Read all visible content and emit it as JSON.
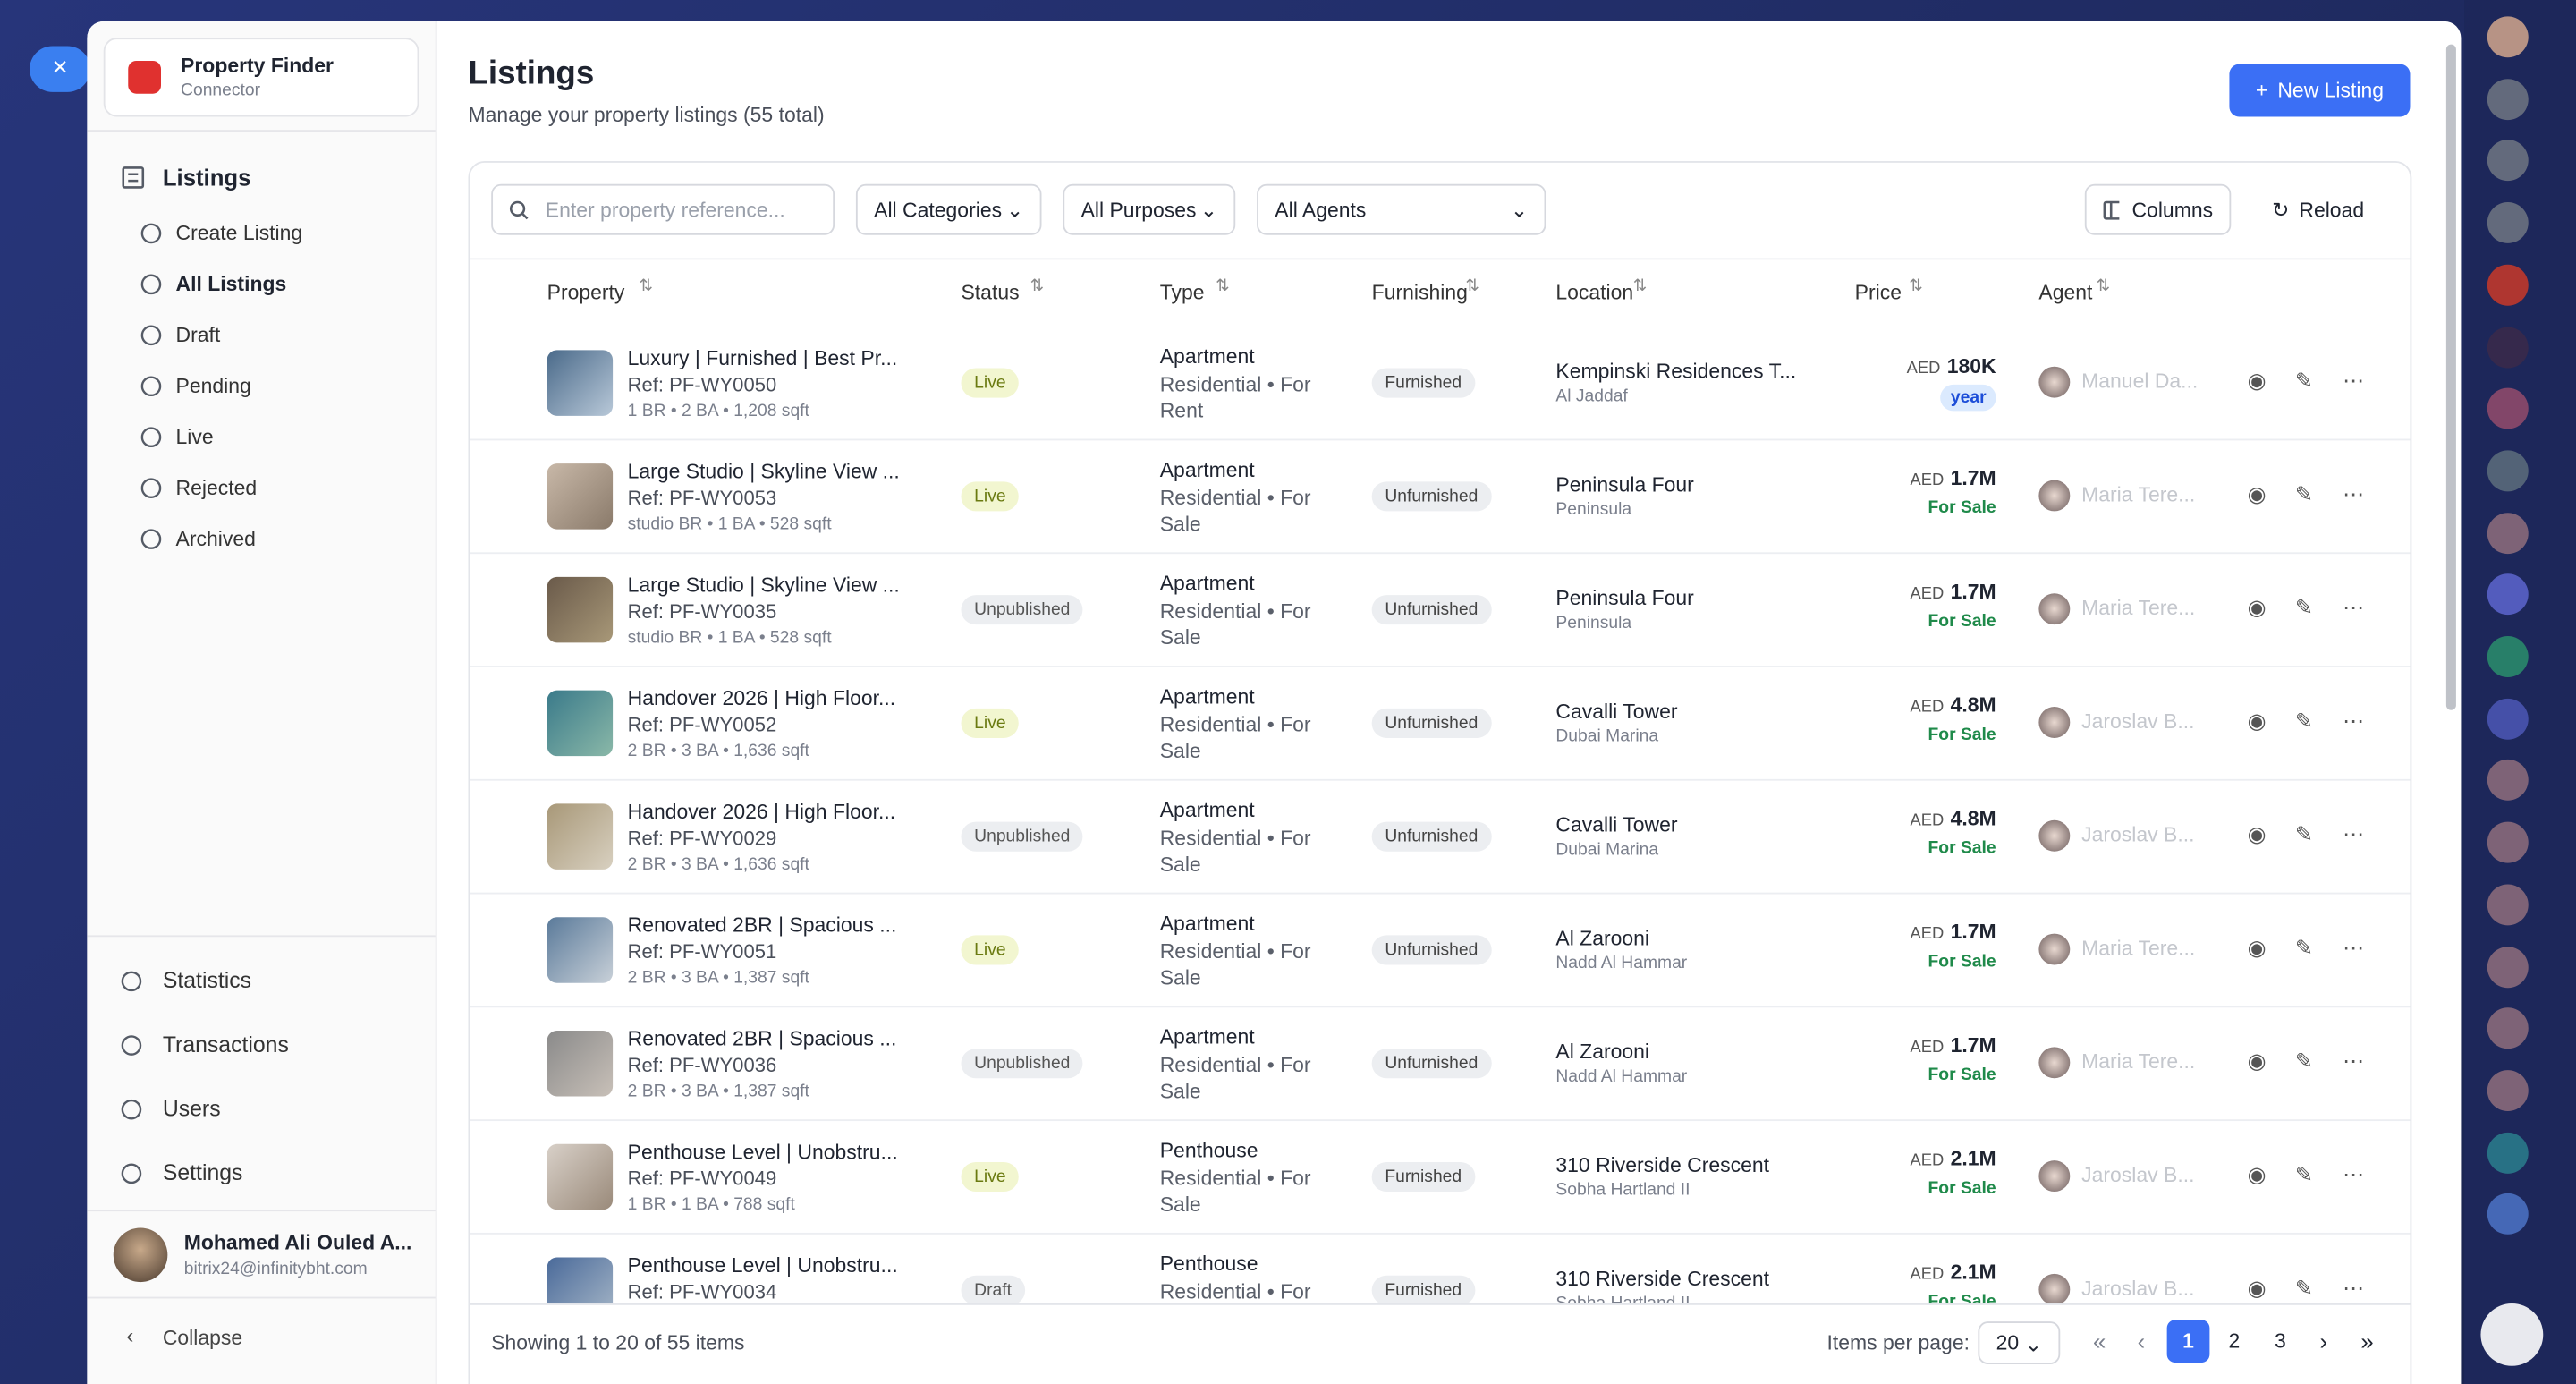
{
  "sidebar": {
    "brand": {
      "title": "Property Finder",
      "subtitle": "Connector"
    },
    "section": "Listings",
    "items": [
      "Create Listing",
      "All Listings",
      "Draft",
      "Pending",
      "Live",
      "Rejected",
      "Archived"
    ],
    "nav": [
      "Statistics",
      "Transactions",
      "Users",
      "Settings"
    ],
    "user": {
      "name": "Mohamed Ali Ouled A...",
      "email": "bitrix24@infinitybht.com"
    },
    "collapse": "Collapse"
  },
  "header": {
    "title": "Listings",
    "subtitle": "Manage your property listings (55 total)",
    "button": "New Listing"
  },
  "filters": {
    "search": "Enter property reference...",
    "categories": "All Categories",
    "purposes": "All Purposes",
    "agents": "All Agents",
    "columns": "Columns",
    "reload": "Reload"
  },
  "table": {
    "columns": [
      "Property",
      "Status",
      "Type",
      "Furnishing",
      "Location",
      "Price",
      "Agent"
    ],
    "rows": [
      {
        "title": "Luxury | Furnished | Best Pr...",
        "ref": "Ref: PF-WY0050",
        "details": "1 BR • 2 BA • 1,208 sqft",
        "status": "Live",
        "type": "Apartment",
        "purpose": "Residential • For Rent",
        "furnishing": "Furnished",
        "location": "Kempinski Residences T...",
        "area": "Al Jaddaf",
        "currency": "AED",
        "price": "180K",
        "period": "year",
        "agent": "Manuel Da..."
      },
      {
        "title": "Large Studio | Skyline View ...",
        "ref": "Ref: PF-WY0053",
        "details": "studio BR • 1 BA • 528 sqft",
        "status": "Live",
        "type": "Apartment",
        "purpose": "Residential • For Sale",
        "furnishing": "Unfurnished",
        "location": "Peninsula Four",
        "area": "Peninsula",
        "currency": "AED",
        "price": "1.7M",
        "period": "For Sale",
        "agent": "Maria Tere..."
      },
      {
        "title": "Large Studio | Skyline View ...",
        "ref": "Ref: PF-WY0035",
        "details": "studio BR • 1 BA • 528 sqft",
        "status": "Unpublished",
        "type": "Apartment",
        "purpose": "Residential • For Sale",
        "furnishing": "Unfurnished",
        "location": "Peninsula Four",
        "area": "Peninsula",
        "currency": "AED",
        "price": "1.7M",
        "period": "For Sale",
        "agent": "Maria Tere..."
      },
      {
        "title": "Handover 2026 | High Floor...",
        "ref": "Ref: PF-WY0052",
        "details": "2 BR • 3 BA • 1,636 sqft",
        "status": "Live",
        "type": "Apartment",
        "purpose": "Residential • For Sale",
        "furnishing": "Unfurnished",
        "location": "Cavalli Tower",
        "area": "Dubai Marina",
        "currency": "AED",
        "price": "4.8M",
        "period": "For Sale",
        "agent": "Jaroslav B..."
      },
      {
        "title": "Handover 2026 | High Floor...",
        "ref": "Ref: PF-WY0029",
        "details": "2 BR • 3 BA • 1,636 sqft",
        "status": "Unpublished",
        "type": "Apartment",
        "purpose": "Residential • For Sale",
        "furnishing": "Unfurnished",
        "location": "Cavalli Tower",
        "area": "Dubai Marina",
        "currency": "AED",
        "price": "4.8M",
        "period": "For Sale",
        "agent": "Jaroslav B..."
      },
      {
        "title": "Renovated 2BR | Spacious ...",
        "ref": "Ref: PF-WY0051",
        "details": "2 BR • 3 BA • 1,387 sqft",
        "status": "Live",
        "type": "Apartment",
        "purpose": "Residential • For Sale",
        "furnishing": "Unfurnished",
        "location": "Al Zarooni",
        "area": "Nadd Al Hammar",
        "currency": "AED",
        "price": "1.7M",
        "period": "For Sale",
        "agent": "Maria Tere..."
      },
      {
        "title": "Renovated 2BR | Spacious ...",
        "ref": "Ref: PF-WY0036",
        "details": "2 BR • 3 BA • 1,387 sqft",
        "status": "Unpublished",
        "type": "Apartment",
        "purpose": "Residential • For Sale",
        "furnishing": "Unfurnished",
        "location": "Al Zarooni",
        "area": "Nadd Al Hammar",
        "currency": "AED",
        "price": "1.7M",
        "period": "For Sale",
        "agent": "Maria Tere..."
      },
      {
        "title": "Penthouse Level | Unobstru...",
        "ref": "Ref: PF-WY0049",
        "details": "1 BR • 1 BA • 788 sqft",
        "status": "Live",
        "type": "Penthouse",
        "purpose": "Residential • For Sale",
        "furnishing": "Furnished",
        "location": "310 Riverside Crescent",
        "area": "Sobha Hartland II",
        "currency": "AED",
        "price": "2.1M",
        "period": "For Sale",
        "agent": "Jaroslav B..."
      },
      {
        "title": "Penthouse Level | Unobstru...",
        "ref": "Ref: PF-WY0034",
        "details": "",
        "status": "Draft",
        "type": "Penthouse",
        "purpose": "Residential • For",
        "furnishing": "Furnished",
        "location": "310 Riverside Crescent",
        "area": "Sobha Hartland II",
        "currency": "AED",
        "price": "2.1M",
        "period": "For Sale",
        "agent": "Jaroslav B..."
      }
    ]
  },
  "footer": {
    "showing": "Showing 1 to 20 of 55 items",
    "per_page_label": "Items per page:",
    "per_page": "20",
    "pages": [
      "1",
      "2",
      "3"
    ]
  }
}
